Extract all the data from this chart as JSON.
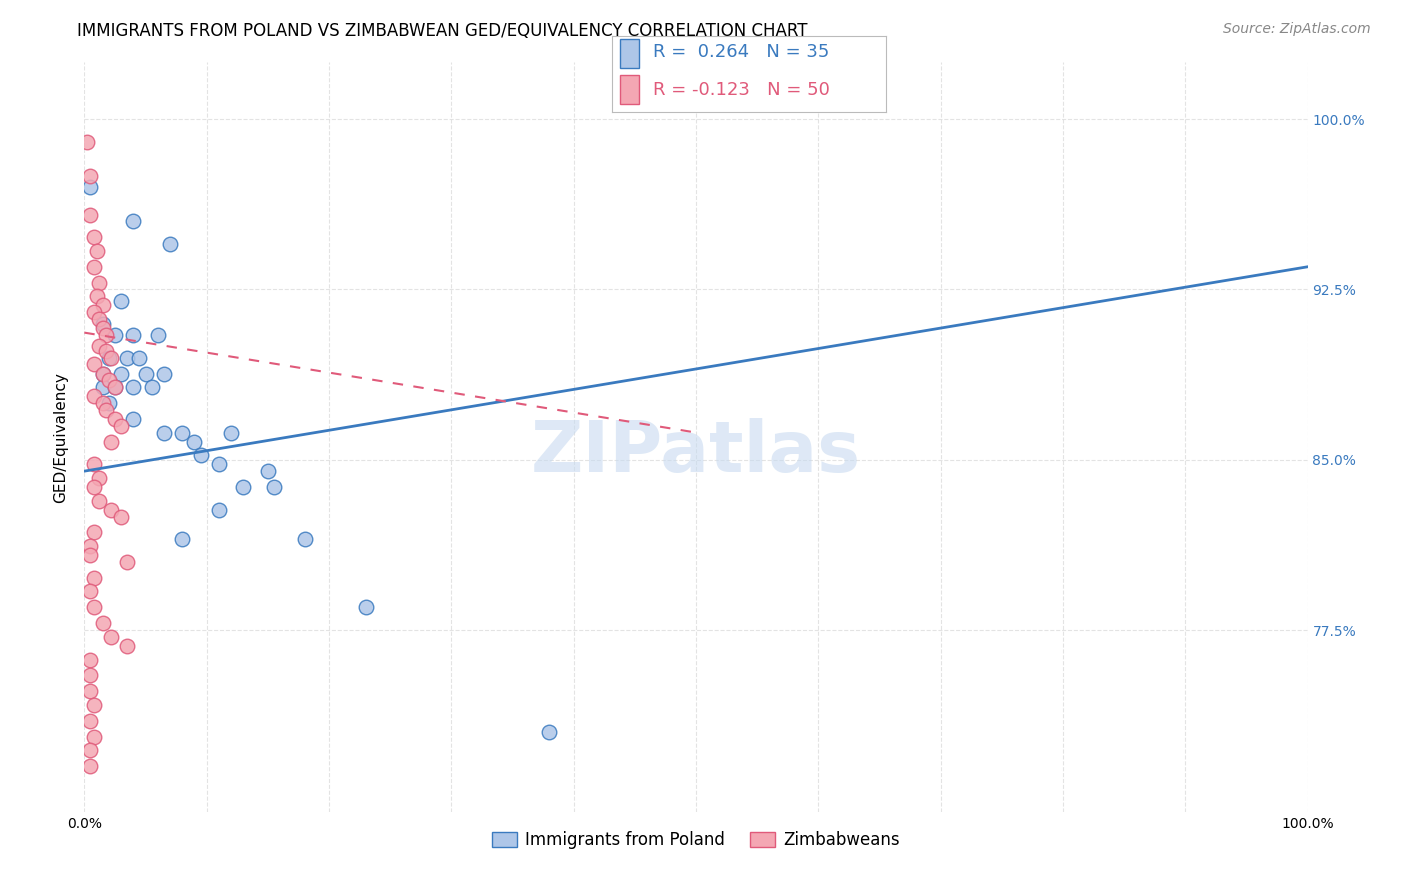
{
  "title": "IMMIGRANTS FROM POLAND VS ZIMBABWEAN GED/EQUIVALENCY CORRELATION CHART",
  "source": "Source: ZipAtlas.com",
  "ylabel": "GED/Equivalency",
  "ylabel_right_labels": [
    "100.0%",
    "92.5%",
    "85.0%",
    "77.5%"
  ],
  "ylabel_right_values": [
    1.0,
    0.925,
    0.85,
    0.775
  ],
  "legend_label1": "Immigrants from Poland",
  "legend_label2": "Zimbabweans",
  "legend_r1": "R =  0.264",
  "legend_n1": "N = 35",
  "legend_r2": "R = -0.123",
  "legend_n2": "N = 50",
  "color_blue": "#aec6e8",
  "color_pink": "#f4a7b3",
  "line_color_blue": "#3a7abf",
  "line_color_pink": "#e05a7a",
  "watermark": "ZIPatlas",
  "blue_line_x": [
    0.0,
    1.0
  ],
  "blue_line_y": [
    0.845,
    0.935
  ],
  "pink_line_x": [
    0.0,
    0.5
  ],
  "pink_line_y": [
    0.906,
    0.862
  ],
  "blue_points": [
    [
      0.005,
      0.97
    ],
    [
      0.04,
      0.955
    ],
    [
      0.07,
      0.945
    ],
    [
      0.03,
      0.92
    ],
    [
      0.015,
      0.91
    ],
    [
      0.025,
      0.905
    ],
    [
      0.04,
      0.905
    ],
    [
      0.06,
      0.905
    ],
    [
      0.02,
      0.895
    ],
    [
      0.035,
      0.895
    ],
    [
      0.045,
      0.895
    ],
    [
      0.015,
      0.888
    ],
    [
      0.03,
      0.888
    ],
    [
      0.05,
      0.888
    ],
    [
      0.065,
      0.888
    ],
    [
      0.015,
      0.882
    ],
    [
      0.025,
      0.882
    ],
    [
      0.04,
      0.882
    ],
    [
      0.055,
      0.882
    ],
    [
      0.02,
      0.875
    ],
    [
      0.04,
      0.868
    ],
    [
      0.065,
      0.862
    ],
    [
      0.08,
      0.862
    ],
    [
      0.09,
      0.858
    ],
    [
      0.12,
      0.862
    ],
    [
      0.095,
      0.852
    ],
    [
      0.11,
      0.848
    ],
    [
      0.15,
      0.845
    ],
    [
      0.13,
      0.838
    ],
    [
      0.155,
      0.838
    ],
    [
      0.11,
      0.828
    ],
    [
      0.08,
      0.815
    ],
    [
      0.18,
      0.815
    ],
    [
      0.23,
      0.785
    ],
    [
      0.38,
      0.73
    ]
  ],
  "pink_points": [
    [
      0.002,
      0.99
    ],
    [
      0.005,
      0.975
    ],
    [
      0.005,
      0.958
    ],
    [
      0.008,
      0.948
    ],
    [
      0.01,
      0.942
    ],
    [
      0.008,
      0.935
    ],
    [
      0.012,
      0.928
    ],
    [
      0.01,
      0.922
    ],
    [
      0.015,
      0.918
    ],
    [
      0.008,
      0.915
    ],
    [
      0.012,
      0.912
    ],
    [
      0.015,
      0.908
    ],
    [
      0.018,
      0.905
    ],
    [
      0.012,
      0.9
    ],
    [
      0.018,
      0.898
    ],
    [
      0.022,
      0.895
    ],
    [
      0.008,
      0.892
    ],
    [
      0.015,
      0.888
    ],
    [
      0.02,
      0.885
    ],
    [
      0.025,
      0.882
    ],
    [
      0.008,
      0.878
    ],
    [
      0.015,
      0.875
    ],
    [
      0.018,
      0.872
    ],
    [
      0.025,
      0.868
    ],
    [
      0.03,
      0.865
    ],
    [
      0.022,
      0.858
    ],
    [
      0.008,
      0.848
    ],
    [
      0.012,
      0.842
    ],
    [
      0.008,
      0.838
    ],
    [
      0.012,
      0.832
    ],
    [
      0.022,
      0.828
    ],
    [
      0.03,
      0.825
    ],
    [
      0.008,
      0.818
    ],
    [
      0.005,
      0.812
    ],
    [
      0.005,
      0.808
    ],
    [
      0.035,
      0.805
    ],
    [
      0.008,
      0.798
    ],
    [
      0.005,
      0.792
    ],
    [
      0.008,
      0.785
    ],
    [
      0.015,
      0.778
    ],
    [
      0.022,
      0.772
    ],
    [
      0.035,
      0.768
    ],
    [
      0.005,
      0.762
    ],
    [
      0.005,
      0.755
    ],
    [
      0.005,
      0.748
    ],
    [
      0.008,
      0.742
    ],
    [
      0.005,
      0.735
    ],
    [
      0.008,
      0.728
    ],
    [
      0.005,
      0.722
    ],
    [
      0.005,
      0.715
    ]
  ],
  "xlim": [
    0.0,
    1.0
  ],
  "ylim": [
    0.695,
    1.025
  ],
  "grid_color": "#dddddd",
  "background_color": "#ffffff",
  "title_fontsize": 12,
  "source_fontsize": 10,
  "axis_label_fontsize": 11,
  "tick_fontsize": 10,
  "legend_fontsize": 14,
  "watermark_color": "#c8daf0",
  "watermark_fontsize": 52
}
